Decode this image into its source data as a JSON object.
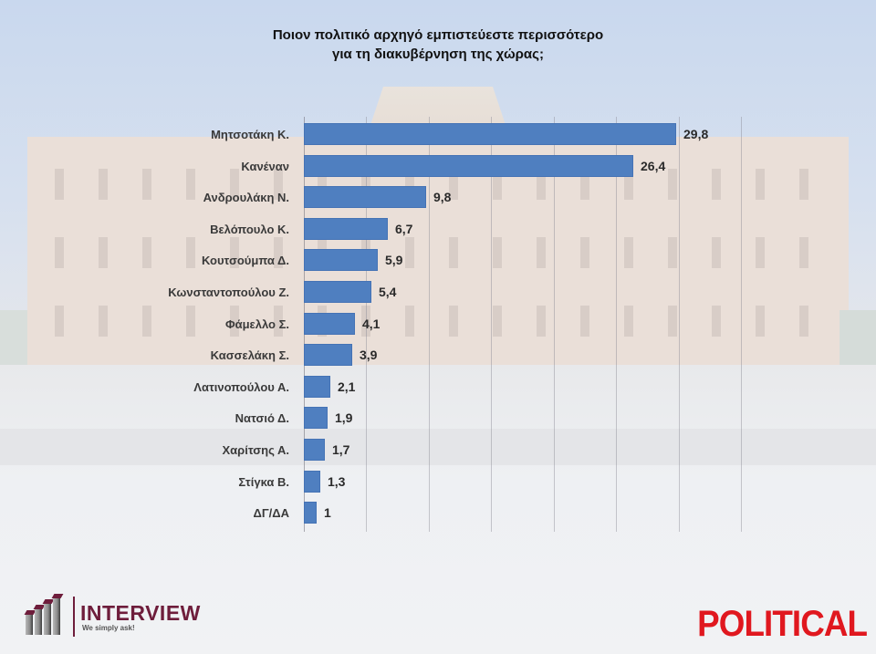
{
  "chart_data": {
    "type": "bar",
    "orientation": "horizontal",
    "title": "Ποιον πολιτικό αρχηγό εμπιστεύεστε περισσότερο για τη διακυβέρνηση της χώρας;",
    "title_lines": [
      "Ποιον πολιτικό αρχηγό εμπιστεύεστε περισσότερο",
      "για τη διακυβέρνηση της χώρας;"
    ],
    "categories": [
      "Μητσοτάκη Κ.",
      "Κανέναν",
      "Ανδρουλάκη Ν.",
      "Βελόπουλο Κ.",
      "Κουτσούμπα Δ.",
      "Κωνσταντοπούλου Ζ.",
      "Φάμελλο Σ.",
      "Κασσελάκη Σ.",
      "Λατινοπούλου Α.",
      "Νατσιό Δ.",
      "Χαρίτσης Α.",
      "Στίγκα Β.",
      "ΔΓ/ΔΑ"
    ],
    "values": [
      29.8,
      26.4,
      9.8,
      6.7,
      5.9,
      5.4,
      4.1,
      3.9,
      2.1,
      1.9,
      1.7,
      1.3,
      1
    ],
    "value_labels": [
      "29,8",
      "26,4",
      "9,8",
      "6,7",
      "5,9",
      "5,4",
      "4,1",
      "3,9",
      "2,1",
      "1,9",
      "1,7",
      "1,3",
      "1"
    ],
    "xlabel": "",
    "ylabel": "",
    "xlim": [
      0,
      35
    ],
    "grid": true,
    "grid_step": 5,
    "legend": null,
    "bar_color": "#4f7fc0"
  },
  "branding": {
    "left_logo": {
      "name": "INTERVIEW",
      "tagline": "We simply ask!",
      "color": "#6e1d3b"
    },
    "right_logo": {
      "name": "POLITICAL",
      "color": "#e0181f"
    }
  }
}
